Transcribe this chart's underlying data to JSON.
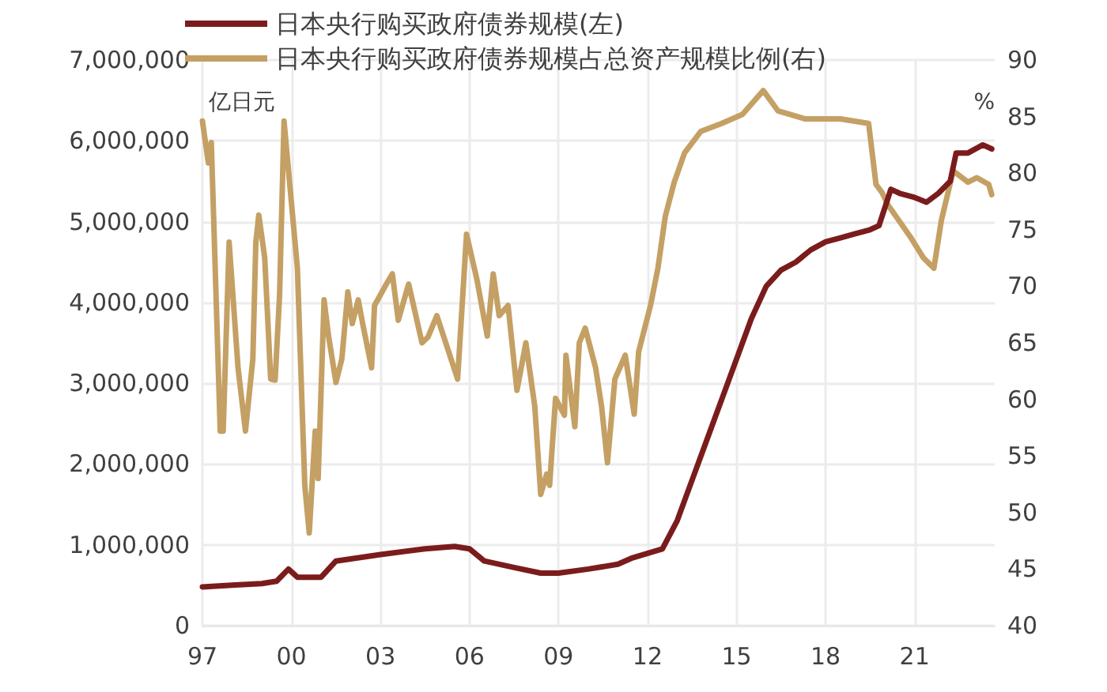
{
  "chart_data": {
    "type": "line",
    "ylabel": "亿日元",
    "y2label": "%",
    "legend": "top",
    "grid": true,
    "marker": "none",
    "line_style": "solid",
    "xlim": [
      1997,
      2023.7
    ],
    "xticks": [
      {
        "value": 1997,
        "label": "97"
      },
      {
        "value": 2000,
        "label": "00"
      },
      {
        "value": 2003,
        "label": "03"
      },
      {
        "value": 2006,
        "label": "06"
      },
      {
        "value": 2009,
        "label": "09"
      },
      {
        "value": 2012,
        "label": "12"
      },
      {
        "value": 2015,
        "label": "15"
      },
      {
        "value": 2018,
        "label": "18"
      },
      {
        "value": 2021,
        "label": "21"
      }
    ],
    "ylim": [
      0,
      7000000
    ],
    "yticks": [
      {
        "value": 0,
        "label": "0"
      },
      {
        "value": 1000000,
        "label": "1,000,000"
      },
      {
        "value": 2000000,
        "label": "2,000,000"
      },
      {
        "value": 3000000,
        "label": "3,000,000"
      },
      {
        "value": 4000000,
        "label": "4,000,000"
      },
      {
        "value": 5000000,
        "label": "5,000,000"
      },
      {
        "value": 6000000,
        "label": "6,000,000"
      },
      {
        "value": 7000000,
        "label": "7,000,000"
      }
    ],
    "y2lim": [
      40,
      90
    ],
    "y2ticks": [
      40,
      45,
      50,
      55,
      60,
      65,
      70,
      75,
      80,
      85,
      90
    ],
    "series": [
      {
        "name": "日本央行购买政府债券规模(左)",
        "color": "#7b1c1c",
        "x": [
          1997,
          1998,
          1999,
          1999.5,
          1999.9,
          2000.2,
          2001,
          2001.5,
          2003,
          2004.5,
          2005.5,
          2006,
          2006.5,
          2007.5,
          2008.4,
          2009,
          2010,
          2011,
          2011.5,
          2012.5,
          2013,
          2013.5,
          2014,
          2014.5,
          2015,
          2015.5,
          2016,
          2016.5,
          2017,
          2017.5,
          2018,
          2018.5,
          2019,
          2019.5,
          2019.8,
          2020.2,
          2020.5,
          2021,
          2021.4,
          2021.8,
          2022.2,
          2022.4,
          2022.8,
          2023.3,
          2023.6
        ],
        "values": [
          480000,
          500000,
          520000,
          550000,
          700000,
          600000,
          600000,
          800000,
          880000,
          950000,
          980000,
          950000,
          800000,
          720000,
          650000,
          650000,
          700000,
          760000,
          840000,
          950000,
          1300000,
          1800000,
          2300000,
          2800000,
          3300000,
          3800000,
          4200000,
          4400000,
          4500000,
          4650000,
          4750000,
          4800000,
          4850000,
          4900000,
          4950000,
          5400000,
          5350000,
          5300000,
          5240000,
          5350000,
          5500000,
          5850000,
          5850000,
          5950000,
          5900000
        ]
      },
      {
        "name": "日本央行购买政府债券规模占总资产规模比例(右)",
        "color": "#c4a064",
        "axis": "y2",
        "x": [
          1997,
          1997.2,
          1997.3,
          1997.6,
          1997.7,
          1997.9,
          1998.2,
          1998.45,
          1998.7,
          1998.8,
          1998.9,
          1999.1,
          1999.3,
          1999.45,
          1999.6,
          1999.75,
          2000.2,
          2000.45,
          2000.6,
          2000.8,
          2000.9,
          2001.1,
          2001.25,
          2001.5,
          2001.7,
          2001.9,
          2002.05,
          2002.25,
          2002.4,
          2002.7,
          2002.8,
          2003.2,
          2003.4,
          2003.6,
          2003.95,
          2004.4,
          2004.6,
          2004.9,
          2005.6,
          2005.9,
          2006.25,
          2006.6,
          2006.8,
          2007,
          2007.3,
          2007.6,
          2007.9,
          2008.2,
          2008.4,
          2008.6,
          2008.7,
          2008.9,
          2009.2,
          2009.25,
          2009.55,
          2009.7,
          2009.9,
          2010.25,
          2010.45,
          2010.65,
          2010.9,
          2011.25,
          2011.55,
          2011.7,
          2012.1,
          2012.35,
          2012.6,
          2012.9,
          2013.25,
          2013.8,
          2014.5,
          2015.2,
          2015.9,
          2016.4,
          2017.3,
          2018.5,
          2019.45,
          2019.7,
          2019.9,
          2020.1,
          2020.85,
          2021.3,
          2021.65,
          2021.9,
          2022.3,
          2022.8,
          2023.1,
          2023.5,
          2023.6
        ],
        "values": [
          84.6,
          80.9,
          82.7,
          57.2,
          57.2,
          73.9,
          62.8,
          57.2,
          63.6,
          73.9,
          76.3,
          72.5,
          61.8,
          61.7,
          69.2,
          84.6,
          71.6,
          52.4,
          48.2,
          57.2,
          53,
          68.8,
          65.6,
          61.5,
          63.6,
          69.5,
          66.7,
          68.8,
          66.7,
          62.8,
          68.3,
          70.2,
          71.1,
          67,
          70.2,
          65,
          65.5,
          67.4,
          61.8,
          74.6,
          70.6,
          65.6,
          71.1,
          67.4,
          68.3,
          60.8,
          65,
          59.4,
          51.6,
          53.4,
          52.4,
          60.1,
          58.6,
          63.9,
          57.6,
          65,
          66.3,
          62.8,
          59.4,
          54.4,
          61.8,
          63.9,
          58.7,
          64.2,
          68.3,
          71.6,
          76.2,
          79.2,
          81.8,
          83.7,
          84.4,
          85.2,
          87.3,
          85.5,
          84.8,
          84.8,
          84.4,
          79,
          78.3,
          77.2,
          74.4,
          72.5,
          71.6,
          75.8,
          80.2,
          79.2,
          79.6,
          79,
          78.1
        ]
      }
    ]
  }
}
